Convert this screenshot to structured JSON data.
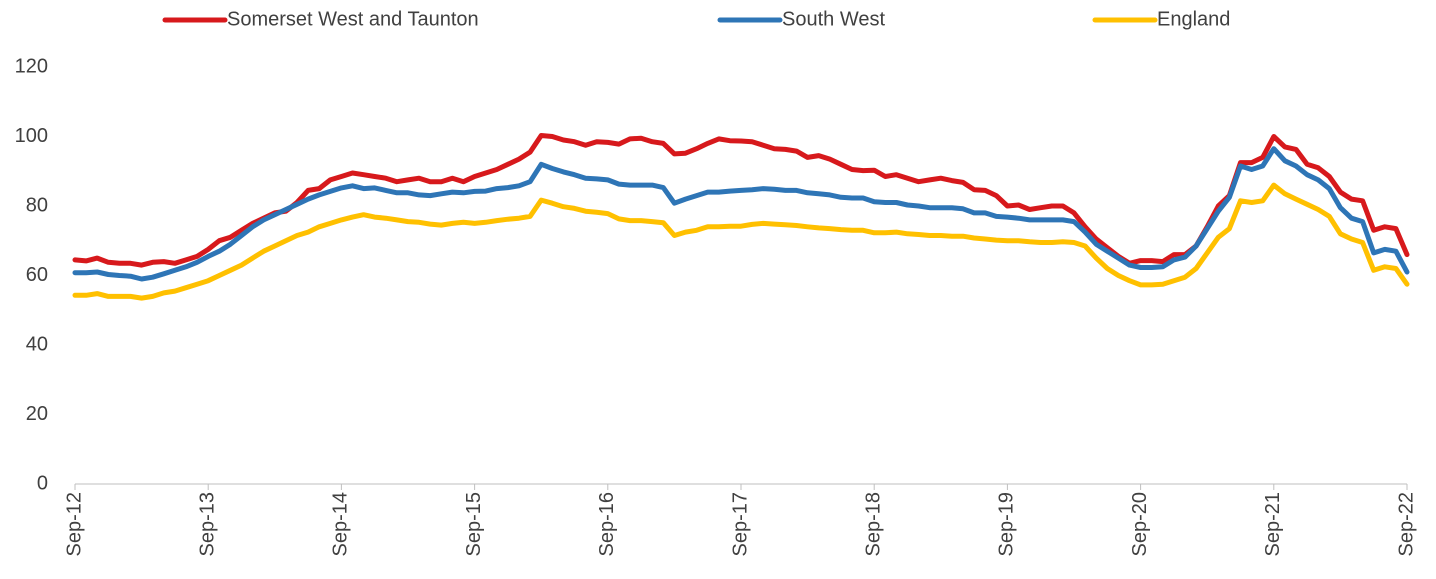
{
  "chart_data": {
    "type": "line",
    "categories": [
      "Sep-12",
      null,
      null,
      null,
      null,
      null,
      null,
      null,
      null,
      null,
      null,
      null,
      "Sep-13",
      null,
      null,
      null,
      null,
      null,
      null,
      null,
      null,
      null,
      null,
      null,
      "Sep-14",
      null,
      null,
      null,
      null,
      null,
      null,
      null,
      null,
      null,
      null,
      null,
      "Sep-15",
      null,
      null,
      null,
      null,
      null,
      null,
      null,
      null,
      null,
      null,
      null,
      "Sep-16",
      null,
      null,
      null,
      null,
      null,
      null,
      null,
      null,
      null,
      null,
      null,
      "Sep-17",
      null,
      null,
      null,
      null,
      null,
      null,
      null,
      null,
      null,
      null,
      null,
      "Sep-18",
      null,
      null,
      null,
      null,
      null,
      null,
      null,
      null,
      null,
      null,
      null,
      "Sep-19",
      null,
      null,
      null,
      null,
      null,
      null,
      null,
      null,
      null,
      null,
      null,
      "Sep-20",
      null,
      null,
      null,
      null,
      null,
      null,
      null,
      null,
      null,
      null,
      null,
      "Sep-21",
      null,
      null,
      null,
      null,
      null,
      null,
      null,
      null,
      null,
      null,
      null,
      "Sep-22"
    ],
    "series": [
      {
        "name": "Somerset West and Taunton",
        "color": "#d7191c",
        "values": [
          64.5,
          64.2,
          65,
          63.8,
          63.5,
          63.5,
          63,
          63.8,
          64,
          63.5,
          64.5,
          65.5,
          67.5,
          70,
          71,
          73,
          75,
          76.5,
          78,
          78.5,
          81,
          84.5,
          85,
          87.5,
          88.5,
          89.5,
          89,
          88.5,
          88,
          87,
          87.5,
          88,
          87,
          87,
          88,
          87,
          88.5,
          89.5,
          90.5,
          92,
          93.5,
          95.5,
          100.3,
          100,
          99,
          98.5,
          97.5,
          98.5,
          98.3,
          97.8,
          99.3,
          99.5,
          98.5,
          98,
          95,
          95.2,
          96.5,
          98,
          99.3,
          98.8,
          98.7,
          98.5,
          97.5,
          96.5,
          96.3,
          95.8,
          94,
          94.5,
          93.5,
          92,
          90.5,
          90.2,
          90.3,
          88.5,
          89,
          88,
          87,
          87.5,
          88,
          87.3,
          86.8,
          84.7,
          84.5,
          83,
          80,
          80.3,
          79,
          79.5,
          80,
          80,
          78,
          74,
          70.5,
          68,
          65.5,
          63.5,
          64.3,
          64.3,
          64,
          66,
          66,
          68.5,
          74,
          80,
          83,
          92.5,
          92.5,
          94,
          100,
          97,
          96.3,
          92,
          91,
          88.5,
          84,
          82,
          81.5,
          73,
          74,
          73.5,
          66
        ]
      },
      {
        "name": "South West",
        "color": "#2e75b6",
        "values": [
          60.8,
          60.8,
          61,
          60.3,
          60,
          59.8,
          59,
          59.5,
          60.5,
          61.5,
          62.5,
          63.8,
          65.5,
          67,
          69,
          71.5,
          74,
          76,
          77.5,
          79,
          80.5,
          82,
          83.2,
          84.2,
          85.2,
          85.8,
          85,
          85.2,
          84.5,
          83.8,
          83.8,
          83.2,
          83,
          83.5,
          84,
          83.8,
          84.2,
          84.3,
          85,
          85.3,
          85.8,
          87,
          92,
          90.8,
          89.8,
          89,
          88,
          87.8,
          87.5,
          86.3,
          86,
          86,
          86,
          85.3,
          80.8,
          82,
          83,
          84,
          84,
          84.3,
          84.5,
          84.7,
          85,
          84.8,
          84.5,
          84.5,
          83.8,
          83.5,
          83.2,
          82.5,
          82.3,
          82.3,
          81.2,
          81,
          81,
          80.3,
          80,
          79.5,
          79.5,
          79.5,
          79.2,
          78,
          78,
          77,
          76.8,
          76.5,
          76,
          76,
          76,
          76,
          75.5,
          72.5,
          69,
          67,
          65,
          63,
          62.3,
          62.3,
          62.5,
          64.5,
          65.3,
          68.5,
          73.5,
          78.5,
          82.5,
          91.5,
          90.5,
          91.5,
          96.5,
          93,
          91.5,
          89,
          87.5,
          85,
          79.5,
          76.5,
          75.5,
          66.5,
          67.5,
          67,
          61
        ]
      },
      {
        "name": "England",
        "color": "#ffc000",
        "values": [
          54.3,
          54.3,
          54.8,
          54,
          54,
          54,
          53.5,
          54,
          55,
          55.5,
          56.5,
          57.5,
          58.5,
          60,
          61.5,
          63,
          65,
          67,
          68.5,
          70,
          71.5,
          72.5,
          74,
          75,
          76,
          76.8,
          77.5,
          76.8,
          76.5,
          76,
          75.5,
          75.3,
          74.8,
          74.5,
          75,
          75.3,
          75,
          75.3,
          75.8,
          76.2,
          76.5,
          77,
          81.7,
          80.8,
          79.8,
          79.3,
          78.5,
          78.2,
          77.8,
          76.3,
          75.8,
          75.8,
          75.5,
          75.2,
          71.5,
          72.5,
          73,
          74,
          74,
          74.2,
          74.2,
          74.7,
          75,
          74.8,
          74.6,
          74.4,
          74,
          73.7,
          73.5,
          73.2,
          73,
          73,
          72.3,
          72.3,
          72.5,
          72,
          71.8,
          71.5,
          71.5,
          71.3,
          71.3,
          70.8,
          70.5,
          70.2,
          70,
          70,
          69.7,
          69.5,
          69.5,
          69.7,
          69.5,
          68.5,
          65,
          62,
          60,
          58.5,
          57.3,
          57.3,
          57.5,
          58.5,
          59.5,
          62,
          66.5,
          71,
          73.5,
          81.5,
          81,
          81.5,
          86,
          83.5,
          82,
          80.5,
          79,
          77,
          72,
          70.5,
          69.5,
          61.5,
          62.5,
          62,
          57.5
        ]
      }
    ],
    "ylim": [
      0,
      120
    ],
    "yticks": [
      0,
      20,
      40,
      60,
      80,
      100,
      120
    ],
    "grid": false,
    "legend": "top"
  }
}
